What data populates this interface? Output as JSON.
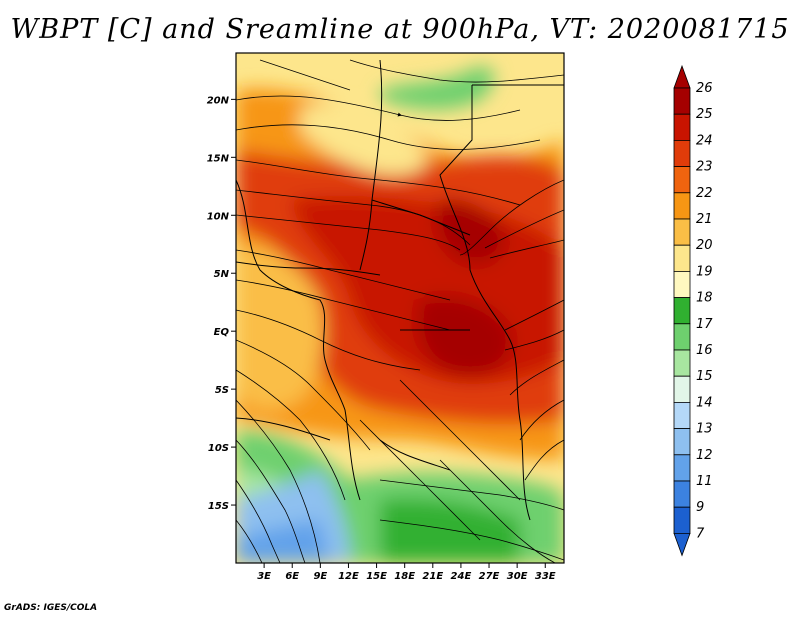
{
  "title": "WBPT [C] and Sreamline at 900hPa, VT: 2020081715",
  "footer": "GrADS: IGES/COLA",
  "map": {
    "lon_range": [
      0,
      35
    ],
    "lat_range": [
      -20,
      24
    ],
    "lon_ticks": [
      "3E",
      "6E",
      "9E",
      "12E",
      "15E",
      "18E",
      "21E",
      "24E",
      "27E",
      "30E",
      "33E"
    ],
    "lat_ticks": [
      "20N",
      "15N",
      "10N",
      "5N",
      "EQ",
      "5S",
      "10S",
      "15S"
    ]
  },
  "colorbar": {
    "labels": [
      "26",
      "25",
      "24",
      "23",
      "22",
      "21",
      "20",
      "19",
      "18",
      "17",
      "16",
      "15",
      "14",
      "13",
      "12",
      "11",
      "9",
      "7"
    ],
    "colors": [
      "#a50000",
      "#c81400",
      "#e03c0a",
      "#f0640f",
      "#f79614",
      "#fabe46",
      "#fde68c",
      "#fff8c0",
      "#30b030",
      "#6ed06e",
      "#a8e6a0",
      "#e2f6e8",
      "#b4d8f8",
      "#8ec0f0",
      "#62a2ea",
      "#3c82e0",
      "#1c60d0"
    ]
  }
}
